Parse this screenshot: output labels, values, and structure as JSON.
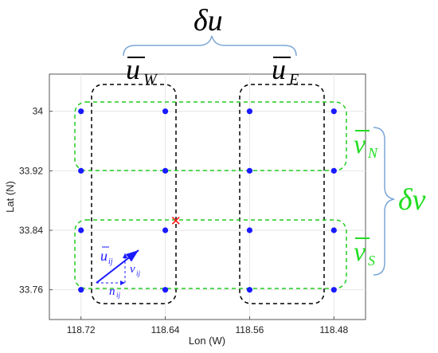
{
  "colors": {
    "black": "#000000",
    "green": "#22cc22",
    "blue": "#1a1aff",
    "red": "#ff1a1a",
    "brace": "#7aa7d6",
    "grid": "#e6e6e6"
  },
  "labels": {
    "delta_u": "δu",
    "u_w": "u",
    "u_w_sub": "W",
    "u_e": "u",
    "u_e_sub": "E",
    "v_n": "v",
    "v_n_sub": "N",
    "v_s": "v",
    "v_s_sub": "S",
    "delta_v": "δv",
    "u_ij": "u",
    "u_ij_sub": "ij",
    "v_ij": "v",
    "v_ij_sub": "ij",
    "n_ij": "n",
    "n_ij_sub": "ij",
    "center_marker": "✕"
  },
  "chart_data": {
    "type": "scatter",
    "xlabel": "Lon (W)",
    "ylabel": "Lat (N)",
    "x_ticks": [
      "118.72",
      "118.64",
      "118.56",
      "118.48"
    ],
    "y_ticks": [
      "34",
      "33.92",
      "33.84",
      "33.76"
    ],
    "x_tick_values": [
      118.72,
      118.64,
      118.56,
      118.48
    ],
    "y_tick_values": [
      34,
      33.92,
      33.84,
      33.76
    ],
    "xlim": [
      118.75,
      118.45
    ],
    "ylim": [
      33.72,
      34.05
    ],
    "grid": true,
    "points": [
      {
        "lon": 118.72,
        "lat": 34
      },
      {
        "lon": 118.64,
        "lat": 34
      },
      {
        "lon": 118.56,
        "lat": 34
      },
      {
        "lon": 118.48,
        "lat": 34
      },
      {
        "lon": 118.72,
        "lat": 33.92
      },
      {
        "lon": 118.64,
        "lat": 33.92
      },
      {
        "lon": 118.56,
        "lat": 33.92
      },
      {
        "lon": 118.48,
        "lat": 33.92
      },
      {
        "lon": 118.72,
        "lat": 33.84
      },
      {
        "lon": 118.64,
        "lat": 33.84
      },
      {
        "lon": 118.56,
        "lat": 33.84
      },
      {
        "lon": 118.48,
        "lat": 33.84
      },
      {
        "lon": 118.72,
        "lat": 33.76
      },
      {
        "lon": 118.64,
        "lat": 33.76
      },
      {
        "lon": 118.56,
        "lat": 33.76
      },
      {
        "lon": 118.48,
        "lat": 33.76
      }
    ],
    "center_point": {
      "lon": 118.63,
      "lat": 33.853
    }
  }
}
